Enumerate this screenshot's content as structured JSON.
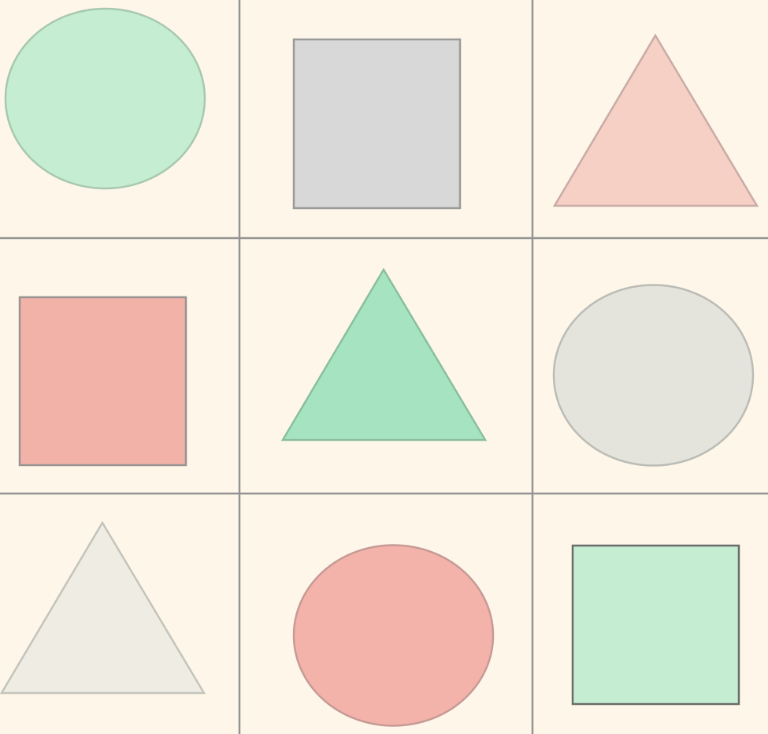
{
  "background_color": "#fdf6e9",
  "grid": {
    "rows": 3,
    "columns": 3,
    "line_color": "#949494"
  },
  "cells": [
    {
      "row": 1,
      "col": 1,
      "shape": "circle",
      "fill": "#c5edd2",
      "stroke": "#a8c8b0"
    },
    {
      "row": 1,
      "col": 2,
      "shape": "square",
      "fill": "#d8d8d8",
      "stroke": "#9a9a9a"
    },
    {
      "row": 1,
      "col": 3,
      "shape": "triangle",
      "fill": "#f6cfc5",
      "stroke": "#c9aca5"
    },
    {
      "row": 2,
      "col": 1,
      "shape": "square",
      "fill": "#f2b2a8",
      "stroke": "#999393"
    },
    {
      "row": 2,
      "col": 2,
      "shape": "triangle",
      "fill": "#a6e4c1",
      "stroke": "#8abf9e"
    },
    {
      "row": 2,
      "col": 3,
      "shape": "circle",
      "fill": "#e4e4dd",
      "stroke": "#bcbcb6"
    },
    {
      "row": 3,
      "col": 1,
      "shape": "triangle",
      "fill": "#efede3",
      "stroke": "#c4c4bc"
    },
    {
      "row": 3,
      "col": 2,
      "shape": "circle",
      "fill": "#f3b3aa",
      "stroke": "#c79a95"
    },
    {
      "row": 3,
      "col": 3,
      "shape": "square",
      "fill": "#c5edd2",
      "stroke": "#6a6c6a"
    }
  ]
}
